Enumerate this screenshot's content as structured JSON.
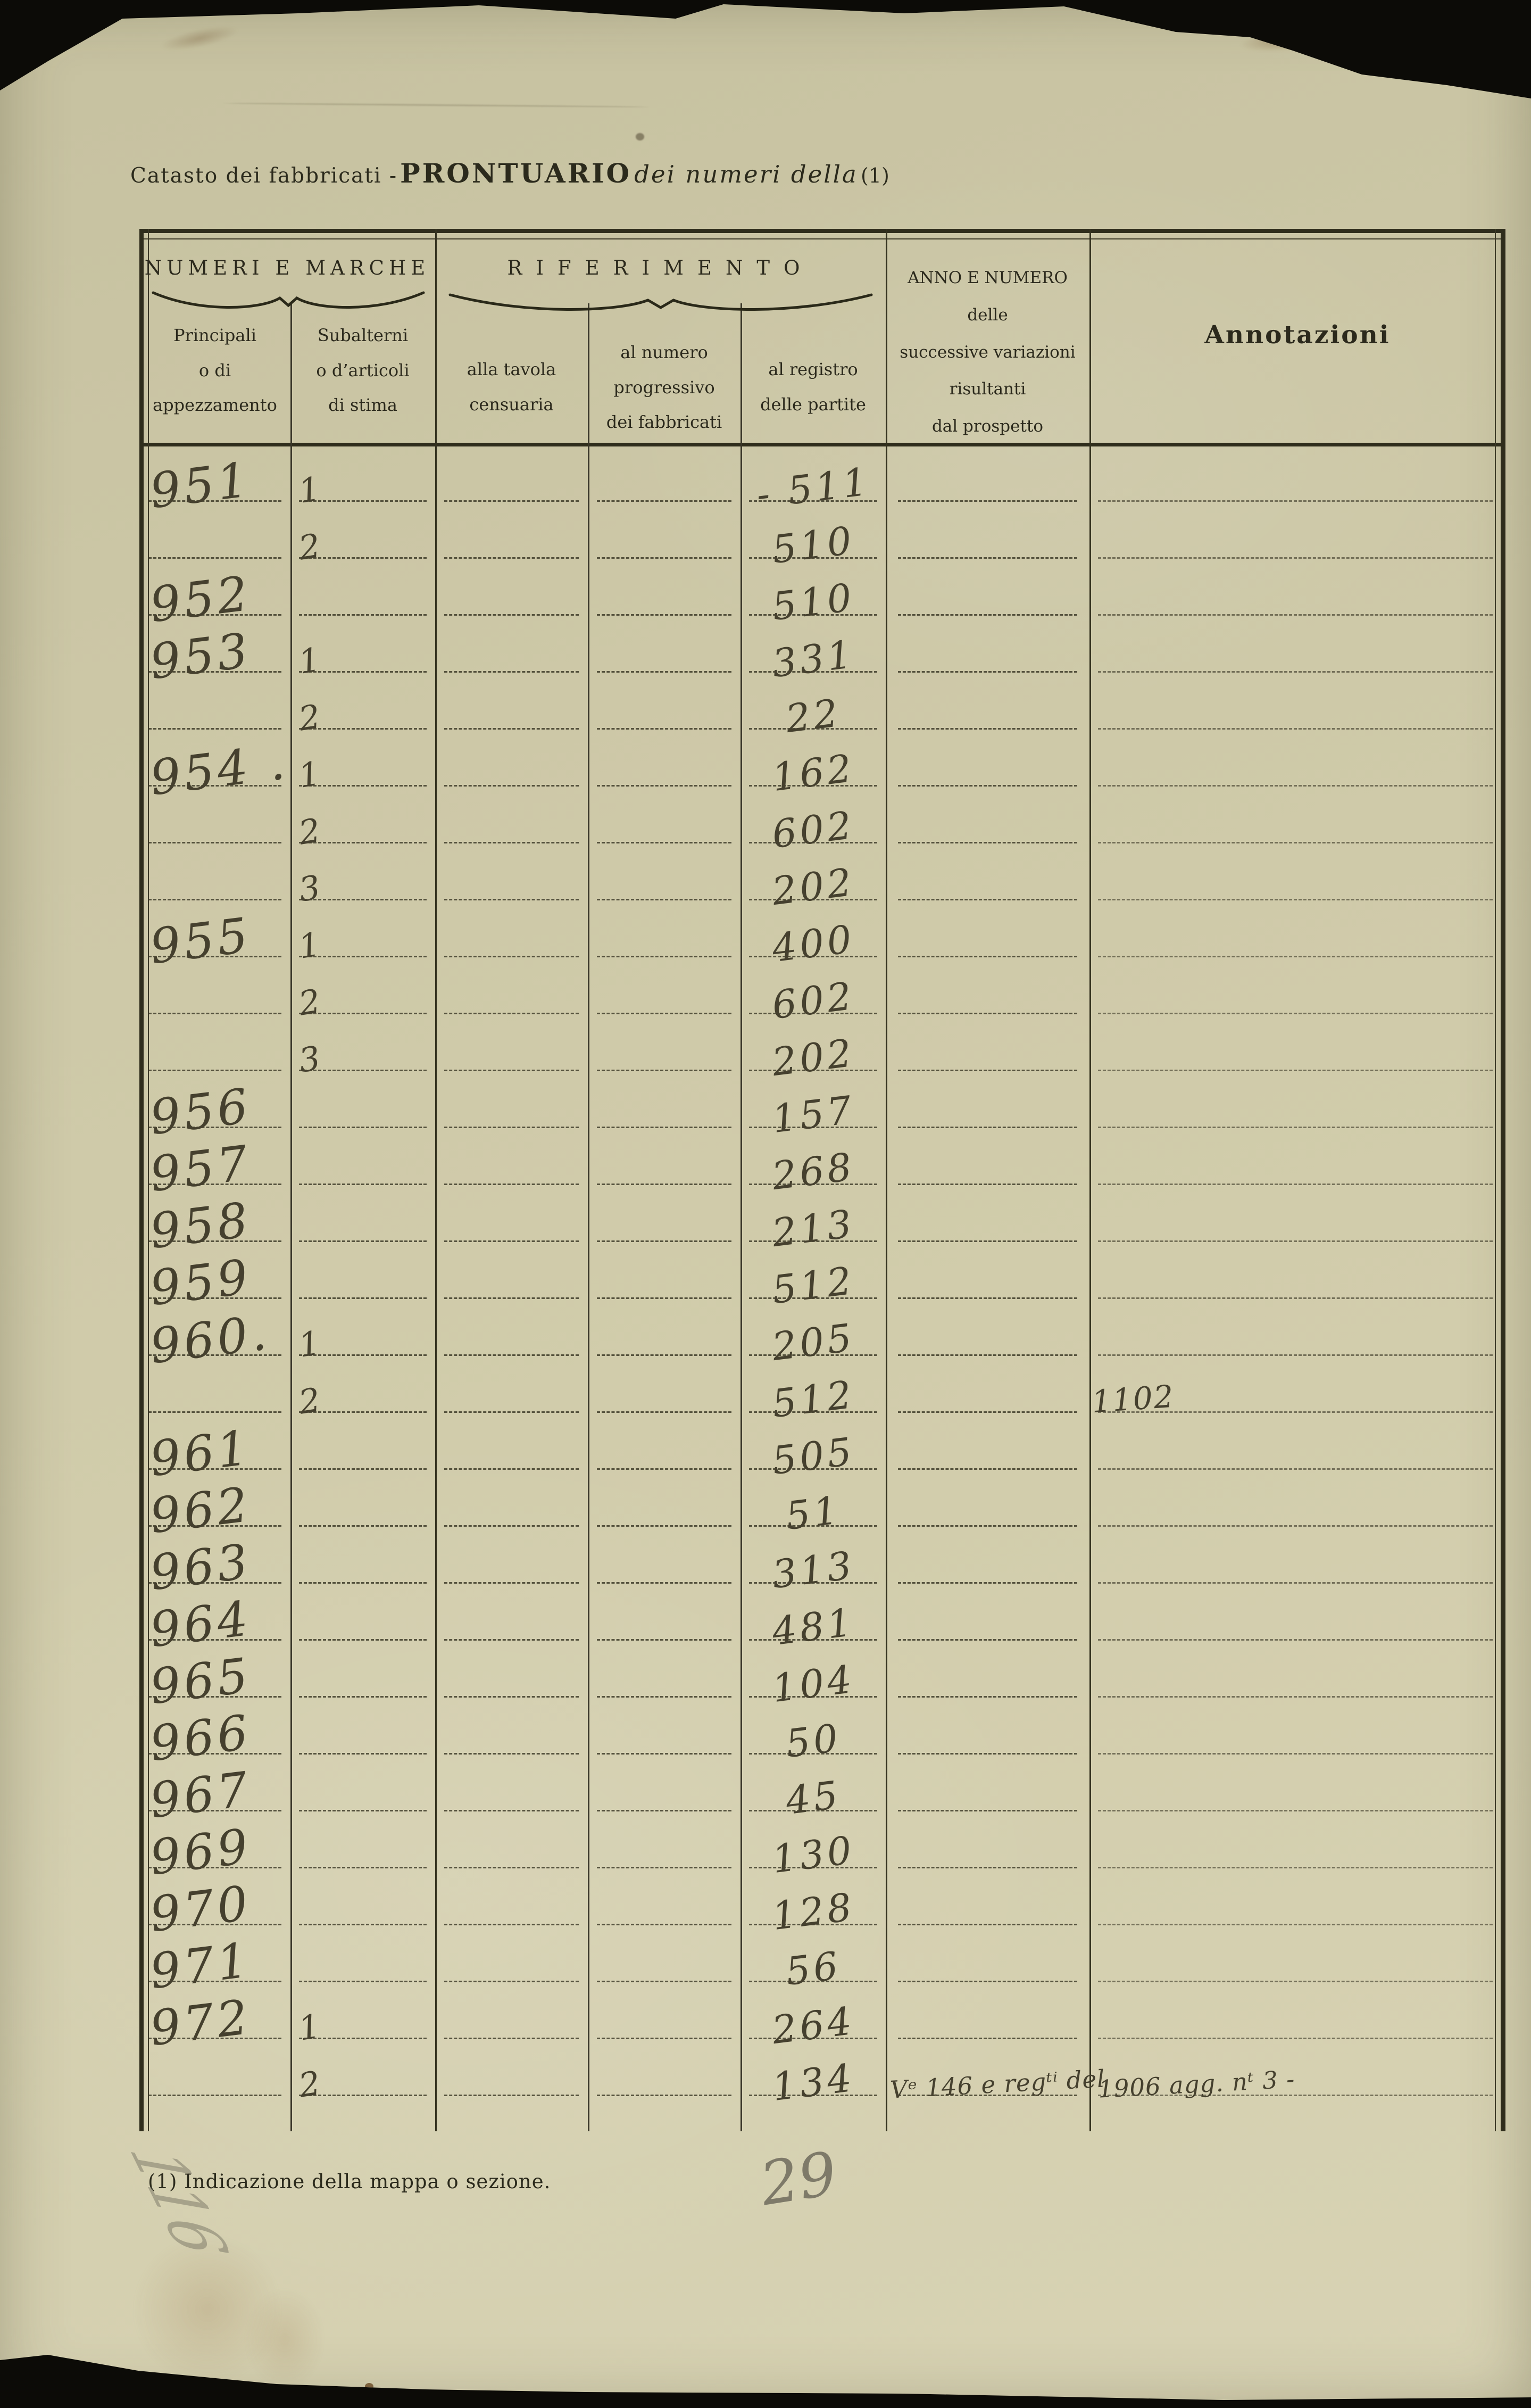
{
  "page": {
    "title": {
      "prefix": "Catasto dei fabbricati -",
      "main": "PRONTUARIO",
      "italic": "dei numeri della",
      "ref": "(1)"
    },
    "footnote": "(1) Indicazione della mappa o sezione.",
    "pencil_marks": {
      "page_number": "29",
      "margin_number": "116"
    }
  },
  "table": {
    "group_numeri": "NUMERI E MARCHE",
    "group_riferimento": "RIFERIMENTO",
    "col_principali": "Principali\no di\nappezzamento",
    "col_subalterni": "Subalterni\no d’articoli\ndi stima",
    "col_tavola": "alla tavola\ncensuaria",
    "col_numero": "al numero\nprogressivo\ndei fabbricati",
    "col_registro": "al registro\ndelle partite",
    "col_anno": "ANNO E NUMERO\ndelle\nsuccessive variazioni\nrisultanti\ndal prospetto",
    "col_annotazioni": "Annotazioni",
    "rows": [
      {
        "principali": "951",
        "subalterni": "1",
        "tavola": "",
        "numero": "",
        "registro": "- 511",
        "anno": "",
        "annotazioni": ""
      },
      {
        "principali": "",
        "subalterni": "2",
        "tavola": "",
        "numero": "",
        "registro": "510",
        "anno": "",
        "annotazioni": ""
      },
      {
        "principali": "952",
        "subalterni": "",
        "tavola": "",
        "numero": "",
        "registro": "510",
        "anno": "",
        "annotazioni": ""
      },
      {
        "principali": "953",
        "subalterni": "1",
        "tavola": "",
        "numero": "",
        "registro": "331",
        "anno": "",
        "annotazioni": ""
      },
      {
        "principali": "",
        "subalterni": "2",
        "tavola": "",
        "numero": "",
        "registro": "22",
        "anno": "",
        "annotazioni": ""
      },
      {
        "principali": "954 .",
        "subalterni": "1",
        "tavola": "",
        "numero": "",
        "registro": "162",
        "anno": "",
        "annotazioni": ""
      },
      {
        "principali": "",
        "subalterni": "2",
        "tavola": "",
        "numero": "",
        "registro": "602",
        "anno": "",
        "annotazioni": ""
      },
      {
        "principali": "",
        "subalterni": "3",
        "tavola": "",
        "numero": "",
        "registro": "202",
        "anno": "",
        "annotazioni": ""
      },
      {
        "principali": "955",
        "subalterni": "1",
        "tavola": "",
        "numero": "",
        "registro": "400",
        "anno": "",
        "annotazioni": ""
      },
      {
        "principali": "",
        "subalterni": "2",
        "tavola": "",
        "numero": "",
        "registro": "602",
        "anno": "",
        "annotazioni": ""
      },
      {
        "principali": "",
        "subalterni": "3",
        "tavola": "",
        "numero": "",
        "registro": "202",
        "anno": "",
        "annotazioni": ""
      },
      {
        "principali": "956",
        "subalterni": "",
        "tavola": "",
        "numero": "",
        "registro": "157",
        "anno": "",
        "annotazioni": ""
      },
      {
        "principali": "957",
        "subalterni": "",
        "tavola": "",
        "numero": "",
        "registro": "268",
        "anno": "",
        "annotazioni": ""
      },
      {
        "principali": "958",
        "subalterni": "",
        "tavola": "",
        "numero": "",
        "registro": "213",
        "anno": "",
        "annotazioni": ""
      },
      {
        "principali": "959",
        "subalterni": "",
        "tavola": "",
        "numero": "",
        "registro": "512",
        "anno": "",
        "annotazioni": ""
      },
      {
        "principali": "960.",
        "subalterni": "1",
        "tavola": "",
        "numero": "",
        "registro": "205",
        "anno": "",
        "annotazioni": ""
      },
      {
        "principali": "",
        "subalterni": "2",
        "tavola": "",
        "numero": "",
        "registro": "512",
        "anno": "",
        "annotazioni": "1102"
      },
      {
        "principali": "961",
        "subalterni": "",
        "tavola": "",
        "numero": "",
        "registro": "505",
        "anno": "",
        "annotazioni": ""
      },
      {
        "principali": "962",
        "subalterni": "",
        "tavola": "",
        "numero": "",
        "registro": "51",
        "anno": "",
        "annotazioni": ""
      },
      {
        "principali": "963",
        "subalterni": "",
        "tavola": "",
        "numero": "",
        "registro": "313",
        "anno": "",
        "annotazioni": ""
      },
      {
        "principali": "964",
        "subalterni": "",
        "tavola": "",
        "numero": "",
        "registro": "481",
        "anno": "",
        "annotazioni": ""
      },
      {
        "principali": "965",
        "subalterni": "",
        "tavola": "",
        "numero": "",
        "registro": "104",
        "anno": "",
        "annotazioni": ""
      },
      {
        "principali": "966",
        "subalterni": "",
        "tavola": "",
        "numero": "",
        "registro": "50",
        "anno": "",
        "annotazioni": ""
      },
      {
        "principali": "967",
        "subalterni": "",
        "tavola": "",
        "numero": "",
        "registro": "45",
        "anno": "",
        "annotazioni": ""
      },
      {
        "principali": "969",
        "subalterni": "",
        "tavola": "",
        "numero": "",
        "registro": "130",
        "anno": "",
        "annotazioni": ""
      },
      {
        "principali": "970",
        "subalterni": "",
        "tavola": "",
        "numero": "",
        "registro": "128",
        "anno": "",
        "annotazioni": ""
      },
      {
        "principali": "971",
        "subalterni": "",
        "tavola": "",
        "numero": "",
        "registro": "56",
        "anno": "",
        "annotazioni": ""
      },
      {
        "principali": "972",
        "subalterni": "1",
        "tavola": "",
        "numero": "",
        "registro": "264",
        "anno": "",
        "annotazioni": ""
      },
      {
        "principali": "",
        "subalterni": "2",
        "tavola": "",
        "numero": "",
        "registro": "134",
        "anno": "Vᵉ 146 e regᵗⁱ del",
        "annotazioni": "1906 agg. nᵗ 3 -"
      }
    ]
  }
}
